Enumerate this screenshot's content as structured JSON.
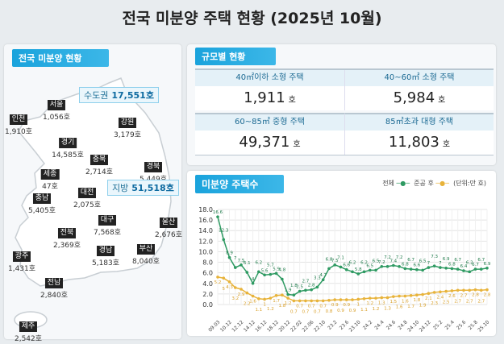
{
  "title": "전국 미분양 주택 현황 (2025년 10월)",
  "map": {
    "tag": "전국 미분양 현황",
    "capital": {
      "label": "수도권",
      "value": "17,551호"
    },
    "local": {
      "label": "지방",
      "value": "51,518호"
    },
    "regions": [
      {
        "name": "서울",
        "value": "1,056호"
      },
      {
        "name": "인천",
        "value": "1,910호"
      },
      {
        "name": "강원",
        "value": "3,179호"
      },
      {
        "name": "경기",
        "value": "14,585호"
      },
      {
        "name": "충북",
        "value": "2,714호"
      },
      {
        "name": "경북",
        "value": "5,449호"
      },
      {
        "name": "세종",
        "value": "47호"
      },
      {
        "name": "충남",
        "value": "5,405호"
      },
      {
        "name": "대전",
        "value": "2,075호"
      },
      {
        "name": "대구",
        "value": "7,568호"
      },
      {
        "name": "울산",
        "value": "2,676호"
      },
      {
        "name": "전북",
        "value": "2,369호"
      },
      {
        "name": "경남",
        "value": "5,183호"
      },
      {
        "name": "부산",
        "value": "8,040호"
      },
      {
        "name": "광주",
        "value": "1,431호"
      },
      {
        "name": "전남",
        "value": "2,840호"
      },
      {
        "name": "제주",
        "value": "2,542호"
      }
    ]
  },
  "size": {
    "tag": "규모별 현황",
    "unit": "호",
    "cells": [
      {
        "label": "40㎡이하 소형 주택",
        "value": "1,911"
      },
      {
        "label": "40~60㎡ 소형 주택",
        "value": "5,984"
      },
      {
        "label": "60~85㎡ 중형 주택",
        "value": "49,371"
      },
      {
        "label": "85㎡초과 대형 주택",
        "value": "11,803"
      }
    ]
  },
  "chart": {
    "tag": "미분양 주택수",
    "legend_total": "전체",
    "legend_completed": "준공 후",
    "unit_note": "(단위:만 호)"
  },
  "chart_data": {
    "type": "line",
    "ylim": [
      0,
      18
    ],
    "yticks": [
      "0.0",
      "2.0",
      "4.0",
      "6.0",
      "8.0",
      "10.0",
      "12.0",
      "14.0",
      "16.0",
      "18.0"
    ],
    "xticks": [
      "09.03",
      "10.12",
      "12.12",
      "14.12",
      "16.12",
      "18.12",
      "20.12",
      "22.02",
      "22.06",
      "22.10",
      "23.2",
      "23.6",
      "23.10",
      "24.2",
      "24.4",
      "24.6",
      "24.8",
      "24.10",
      "24.12",
      "25.2",
      "25.4",
      "25.6",
      "25.8",
      "25.10"
    ],
    "series": [
      {
        "name": "전체",
        "color": "#2e9a62",
        "values": [
          16.6,
          12.3,
          8.9,
          7.0,
          7.5,
          6.1,
          4.0,
          6.2,
          5.6,
          5.7,
          5.9,
          4.8,
          1.9,
          1.8,
          2.5,
          2.7,
          2.8,
          3.3,
          4.7,
          6.8,
          7.5,
          7.1,
          6.6,
          6.2,
          5.8,
          6.2,
          6.5,
          6.5,
          7.2,
          7.2,
          7.4,
          7.2,
          6.8,
          6.7,
          6.6,
          6.5,
          7.0,
          7.3,
          7.0,
          6.9,
          6.8,
          6.7,
          6.4,
          6.2,
          6.7,
          6.7,
          6.9
        ]
      },
      {
        "name": "준공 후",
        "color": "#e8b33a",
        "values": [
          5.2,
          5.0,
          4.3,
          3.2,
          2.9,
          2.2,
          1.6,
          1.1,
          1.0,
          1.2,
          1.7,
          1.8,
          1.2,
          0.7,
          0.7,
          0.7,
          0.7,
          0.7,
          0.7,
          0.8,
          0.9,
          0.9,
          0.9,
          0.9,
          1.0,
          1.1,
          1.2,
          1.2,
          1.3,
          1.3,
          1.5,
          1.6,
          1.6,
          1.7,
          1.8,
          1.9,
          2.1,
          2.3,
          2.4,
          2.5,
          2.6,
          2.7,
          2.7,
          2.7,
          2.8,
          2.7,
          2.8
        ]
      }
    ]
  }
}
